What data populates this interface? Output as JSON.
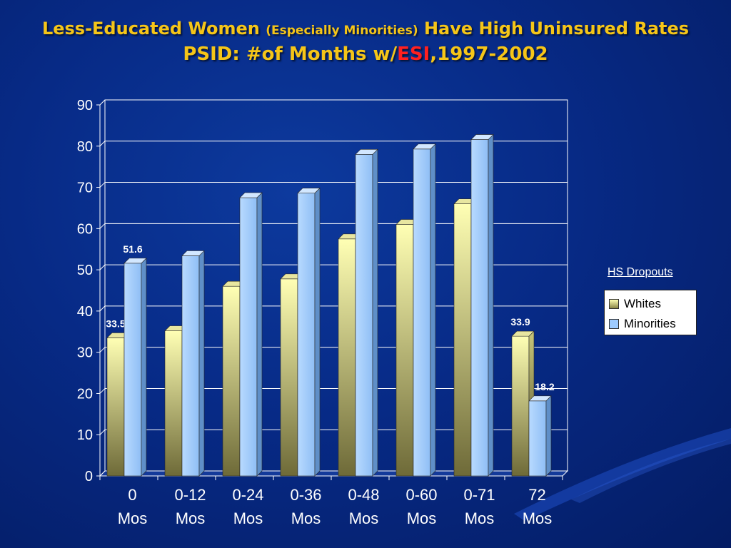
{
  "title": {
    "line1_a": "Less-Educated Women",
    "line1_b": "(Especially Minorities)",
    "line1_c": "Have High Uninsured Rates",
    "line2_a": "PSID: #of Months w/",
    "line2_b": "ESI",
    "line2_c": ",1997-2002"
  },
  "legend": {
    "group_label": "HS Dropouts",
    "entries": [
      "Whites",
      "Minorities"
    ]
  },
  "colors": {
    "whites_top": "#ffffb0",
    "whites_bottom": "#6e6a38",
    "minorities": "#9ecbff",
    "title": "#f5c518",
    "accent": "#ff2020"
  },
  "chart_data": {
    "type": "bar",
    "categories": [
      [
        "0",
        "Mos"
      ],
      [
        "0-12",
        "Mos"
      ],
      [
        "0-24",
        "Mos"
      ],
      [
        "0-36",
        "Mos"
      ],
      [
        "0-48",
        "Mos"
      ],
      [
        "0-60",
        "Mos"
      ],
      [
        "0-71",
        "Mos"
      ],
      [
        "72",
        "Mos"
      ]
    ],
    "series": [
      {
        "name": "Whites",
        "values": [
          33.5,
          35.2,
          46.0,
          47.8,
          57.5,
          61.0,
          66.0,
          33.9
        ],
        "labels": [
          "33.5",
          "",
          "",
          "",
          "",
          "",
          "",
          "33.9"
        ]
      },
      {
        "name": "Minorities",
        "values": [
          51.6,
          53.4,
          67.5,
          68.6,
          78.0,
          79.3,
          81.6,
          18.2
        ],
        "labels": [
          "51.6",
          "",
          "",
          "",
          "",
          "",
          "",
          "18.2"
        ]
      }
    ],
    "yticks": [
      0,
      10,
      20,
      30,
      40,
      50,
      60,
      70,
      80,
      90
    ],
    "ylim": [
      0,
      90
    ],
    "grid": true,
    "style": "3d-clustered-columns",
    "legend_position": "right"
  }
}
